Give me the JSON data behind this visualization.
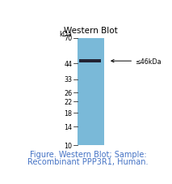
{
  "title": "Western Blot",
  "fig_caption": "Figure. Western Blot; Sample:\nRecombinant PPP3R1, Human.",
  "caption_color": "#4472C4",
  "band_label": "≤46kDa",
  "kda_labels": [
    70,
    44,
    33,
    26,
    22,
    18,
    14,
    10
  ],
  "kda_top_label": "kDa",
  "gel_color": "#7ab9d8",
  "band_color": "#222233",
  "title_fontsize": 7.5,
  "caption_fontsize": 7.0,
  "tick_fontsize": 5.8,
  "background_color": "#ffffff"
}
